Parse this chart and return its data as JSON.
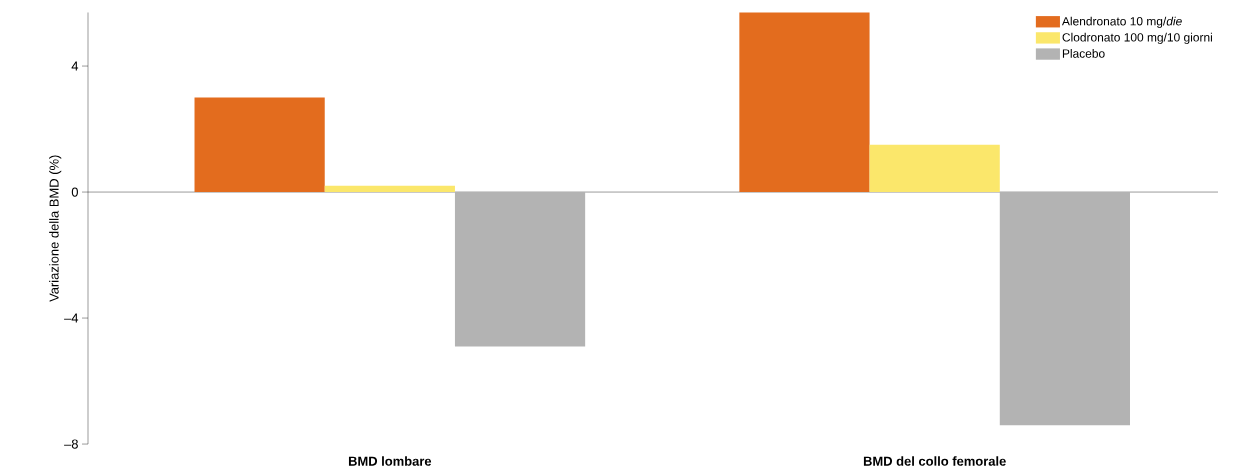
{
  "chart_data": {
    "type": "bar",
    "ylabel": "Variazione della BMD  (%)",
    "categories": [
      "BMD lombare",
      "BMD del collo femorale"
    ],
    "series": [
      {
        "name": "Alendronato 10 mg/*die*",
        "color": "#e36c1e",
        "values": [
          3.0,
          5.7
        ]
      },
      {
        "name": "Clodronato 100 mg/10 giorni",
        "color": "#fbe76b",
        "values": [
          0.2,
          1.5
        ]
      },
      {
        "name": "Placebo",
        "color": "#b3b3b3",
        "values": [
          -4.9,
          -7.4
        ]
      }
    ],
    "ylim": [
      -8,
      5.7
    ],
    "yticks": [
      {
        "value": -8,
        "label": "–8"
      },
      {
        "value": -4,
        "label": "–4"
      },
      0,
      4
    ],
    "legend": "top right"
  }
}
